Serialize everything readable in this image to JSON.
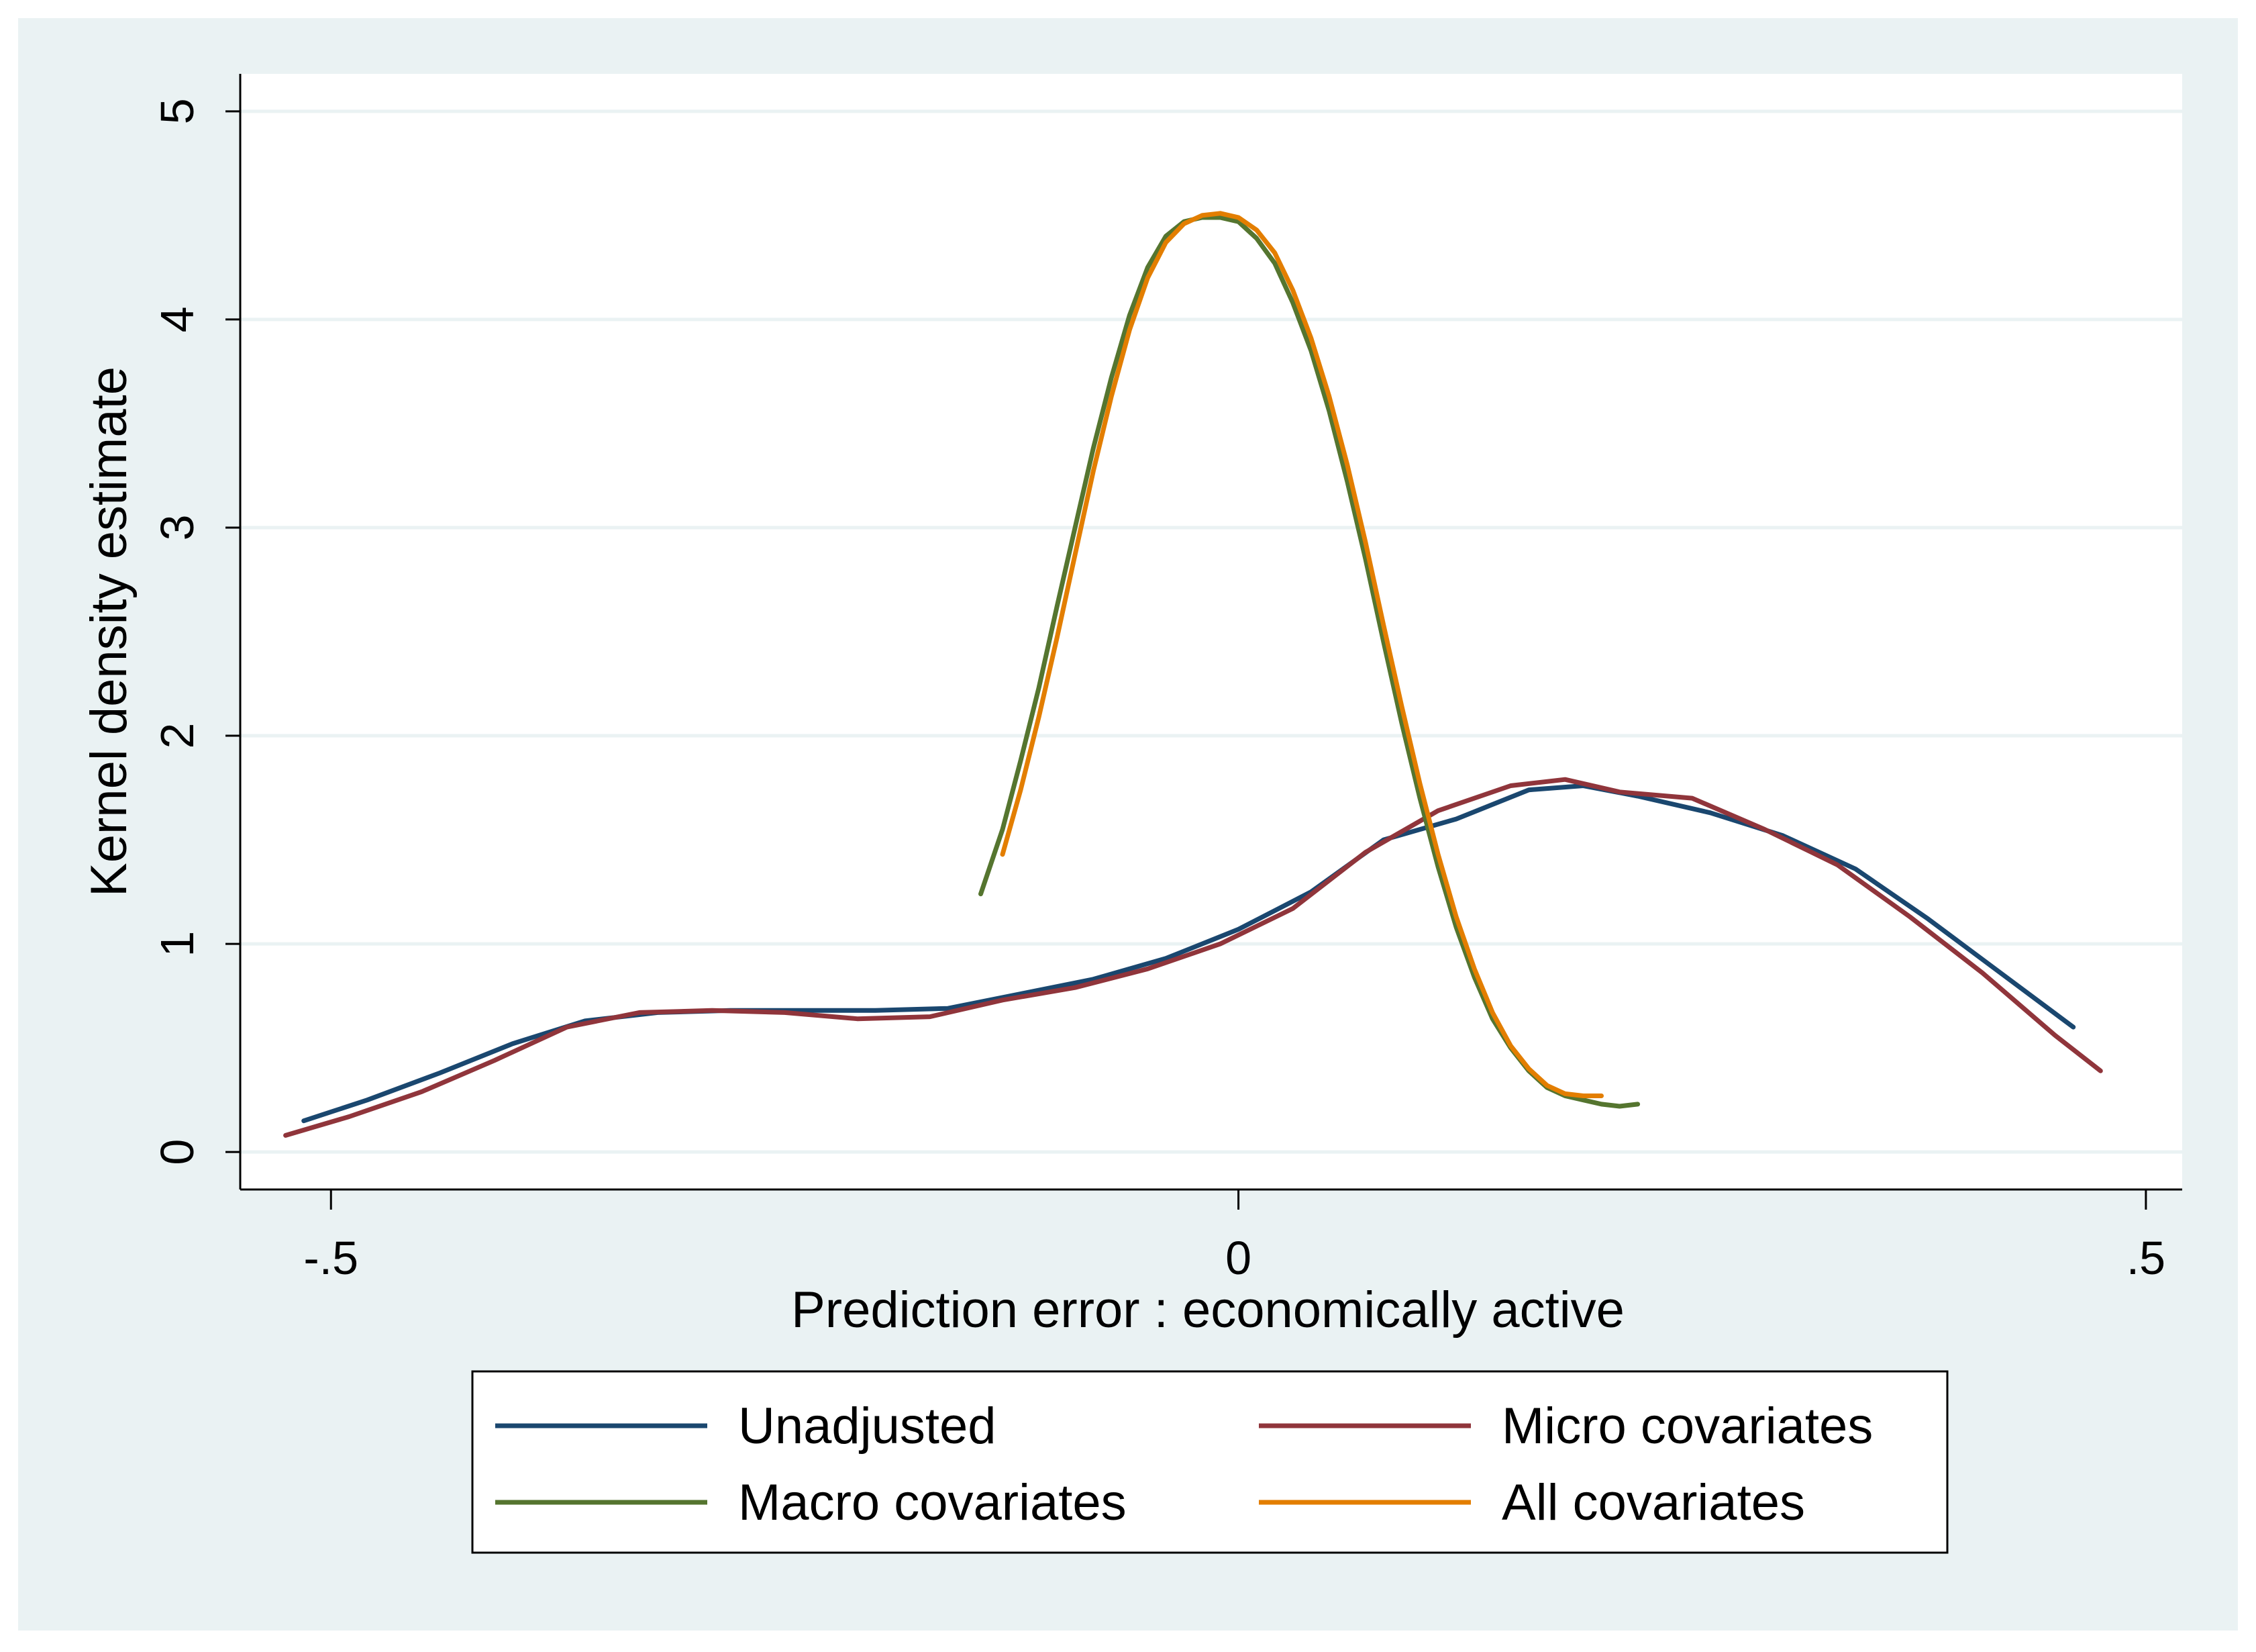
{
  "chart_data": {
    "type": "line",
    "title": "",
    "xlabel": "Prediction error : economically active",
    "ylabel": "Kernel density estimate",
    "xlim": [
      -0.55,
      0.52
    ],
    "ylim": [
      -0.18,
      5.18
    ],
    "xticks": [
      -0.5,
      0,
      0.5
    ],
    "xtick_labels": [
      "-.5",
      "0",
      ".5"
    ],
    "yticks": [
      0,
      1,
      2,
      3,
      4,
      5
    ],
    "ytick_labels": [
      "0",
      "1",
      "2",
      "3",
      "4",
      "5"
    ],
    "grid": true,
    "legend_position": "bottom",
    "colors": {
      "outer_background": "#eaf2f3",
      "plot_background": "#ffffff",
      "grid": "#eaf2f3"
    },
    "series": [
      {
        "name": "Unadjusted",
        "color": "#1a476f",
        "x": [
          -0.515,
          -0.48,
          -0.44,
          -0.4,
          -0.36,
          -0.32,
          -0.28,
          -0.24,
          -0.2,
          -0.16,
          -0.12,
          -0.08,
          -0.04,
          0.0,
          0.04,
          0.08,
          0.12,
          0.16,
          0.19,
          0.22,
          0.26,
          0.3,
          0.34,
          0.38,
          0.42,
          0.46
        ],
        "y": [
          0.15,
          0.25,
          0.38,
          0.52,
          0.63,
          0.67,
          0.68,
          0.68,
          0.68,
          0.69,
          0.76,
          0.83,
          0.93,
          1.07,
          1.25,
          1.5,
          1.6,
          1.74,
          1.76,
          1.71,
          1.63,
          1.52,
          1.36,
          1.12,
          0.86,
          0.6
        ]
      },
      {
        "name": "Micro covariates",
        "color": "#90353b",
        "x": [
          -0.525,
          -0.49,
          -0.45,
          -0.41,
          -0.37,
          -0.33,
          -0.29,
          -0.25,
          -0.21,
          -0.17,
          -0.13,
          -0.09,
          -0.05,
          -0.01,
          0.03,
          0.07,
          0.11,
          0.15,
          0.18,
          0.21,
          0.25,
          0.29,
          0.33,
          0.37,
          0.41,
          0.45,
          0.475
        ],
        "y": [
          0.08,
          0.17,
          0.29,
          0.44,
          0.6,
          0.67,
          0.68,
          0.67,
          0.64,
          0.65,
          0.73,
          0.79,
          0.88,
          1.0,
          1.17,
          1.44,
          1.64,
          1.76,
          1.79,
          1.73,
          1.7,
          1.55,
          1.38,
          1.13,
          0.86,
          0.56,
          0.39
        ]
      },
      {
        "name": "Macro covariates",
        "color": "#55752f",
        "x": [
          -0.142,
          -0.13,
          -0.12,
          -0.11,
          -0.1,
          -0.09,
          -0.08,
          -0.07,
          -0.06,
          -0.05,
          -0.04,
          -0.03,
          -0.02,
          -0.01,
          0.0,
          0.01,
          0.02,
          0.03,
          0.04,
          0.05,
          0.06,
          0.07,
          0.08,
          0.09,
          0.1,
          0.11,
          0.12,
          0.13,
          0.14,
          0.15,
          0.16,
          0.17,
          0.18,
          0.19,
          0.2,
          0.21,
          0.22
        ],
        "y": [
          1.24,
          1.55,
          1.88,
          2.23,
          2.62,
          3.0,
          3.38,
          3.72,
          4.02,
          4.25,
          4.4,
          4.47,
          4.49,
          4.49,
          4.47,
          4.39,
          4.27,
          4.08,
          3.85,
          3.56,
          3.22,
          2.85,
          2.45,
          2.06,
          1.7,
          1.37,
          1.08,
          0.84,
          0.64,
          0.5,
          0.39,
          0.31,
          0.27,
          0.25,
          0.23,
          0.22,
          0.23
        ]
      },
      {
        "name": "All covariates",
        "color": "#e37e00",
        "x": [
          -0.13,
          -0.12,
          -0.11,
          -0.1,
          -0.09,
          -0.08,
          -0.07,
          -0.06,
          -0.05,
          -0.04,
          -0.03,
          -0.02,
          -0.01,
          0.0,
          0.01,
          0.02,
          0.03,
          0.04,
          0.05,
          0.06,
          0.07,
          0.08,
          0.09,
          0.1,
          0.11,
          0.12,
          0.13,
          0.14,
          0.15,
          0.16,
          0.17,
          0.18,
          0.19,
          0.2
        ],
        "y": [
          1.43,
          1.74,
          2.09,
          2.47,
          2.87,
          3.27,
          3.63,
          3.95,
          4.2,
          4.37,
          4.46,
          4.5,
          4.51,
          4.49,
          4.43,
          4.32,
          4.14,
          3.91,
          3.63,
          3.3,
          2.93,
          2.53,
          2.14,
          1.77,
          1.43,
          1.13,
          0.88,
          0.67,
          0.51,
          0.4,
          0.32,
          0.28,
          0.27,
          0.27
        ]
      }
    ]
  }
}
